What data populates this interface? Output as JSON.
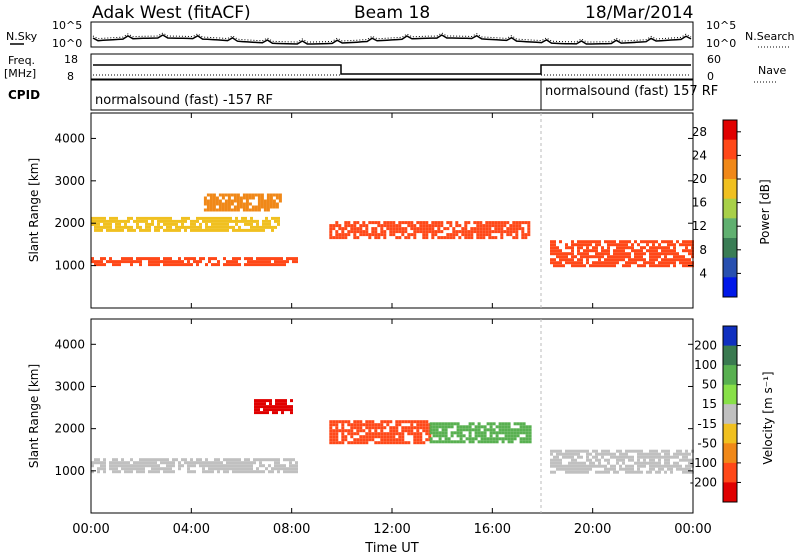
{
  "header": {
    "station": "Adak West (fitACF)",
    "beam": "Beam 18",
    "date": "18/Mar/2014"
  },
  "top_panels": {
    "nsky_label": "N.Sky",
    "nsearch_label": "N.Search",
    "noise_ticks": [
      "10^5",
      "10^0"
    ],
    "freq_label_1": "Freq.",
    "freq_label_2": "[MHz]",
    "freq_ticks": [
      "18",
      "8"
    ],
    "nave_label": "Nave",
    "nave_ticks": [
      "60",
      "0"
    ],
    "cpid_label": "CPID",
    "cpid_left": "normalsound (fast) -157 RF",
    "cpid_right": "normalsound (fast) 157 RF"
  },
  "chart_data": [
    {
      "type": "heatmap",
      "title": "Power",
      "xlabel": "Time UT",
      "ylabel": "Slant Range [km]",
      "x_ticks": [
        "00:00",
        "04:00",
        "08:00",
        "12:00",
        "16:00",
        "20:00",
        "00:00"
      ],
      "y_ticks": [
        1000,
        2000,
        3000,
        4000
      ],
      "ylim": [
        0,
        4600
      ],
      "xlim_hours": [
        0,
        24
      ],
      "colorbar": {
        "label": "Power [dB]",
        "ticks": [
          "4",
          "8",
          "12",
          "16",
          "20",
          "24",
          "28"
        ],
        "range": [
          0,
          30
        ],
        "colors": [
          "#0018e8",
          "#2850b0",
          "#3a7d55",
          "#60b070",
          "#a8d048",
          "#f0c020",
          "#f08818",
          "#ff4818",
          "#e00000"
        ]
      },
      "features": [
        {
          "desc": "near-range band",
          "start_h": 0,
          "end_h": 8.2,
          "range_km": [
            1000,
            1200
          ],
          "power_db": 26
        },
        {
          "desc": "mid band",
          "start_h": 0,
          "end_h": 7.5,
          "range_km": [
            1850,
            2150
          ],
          "power_db": 20
        },
        {
          "desc": "upper patch",
          "start_h": 4.5,
          "end_h": 7.5,
          "range_km": [
            2300,
            2700
          ],
          "power_db": 24
        },
        {
          "desc": "central F-region band",
          "start_h": 9.5,
          "end_h": 17.5,
          "range_km": [
            1650,
            2050
          ],
          "power_db": 26
        },
        {
          "desc": "evening band",
          "start_h": 18.3,
          "end_h": 24,
          "range_km": [
            1000,
            1600
          ],
          "power_db": 26
        }
      ]
    },
    {
      "type": "heatmap",
      "title": "Velocity",
      "xlabel": "Time UT",
      "ylabel": "Slant Range [km]",
      "x_ticks": [
        "00:00",
        "04:00",
        "08:00",
        "12:00",
        "16:00",
        "20:00",
        "00:00"
      ],
      "y_ticks": [
        1000,
        2000,
        3000,
        4000
      ],
      "ylim": [
        0,
        4600
      ],
      "xlim_hours": [
        0,
        24
      ],
      "colorbar": {
        "label": "Velocity [m s⁻¹]",
        "ticks": [
          "200",
          "100",
          "50",
          "15",
          "-15",
          "-50",
          "-100",
          "-200"
        ],
        "colors": [
          "#1030c0",
          "#3a7a50",
          "#58b050",
          "#88e048",
          "#c0c0c0",
          "#f0c020",
          "#f08818",
          "#ff4818",
          "#e00000"
        ]
      },
      "features": [
        {
          "desc": "ground scatter",
          "start_h": 0,
          "end_h": 8.2,
          "range_km": [
            1000,
            1300
          ],
          "velocity_ms": 0
        },
        {
          "desc": "negative patch",
          "start_h": 6.5,
          "end_h": 8.0,
          "range_km": [
            2400,
            2700
          ],
          "velocity_ms": -200
        },
        {
          "desc": "central negative",
          "start_h": 9.5,
          "end_h": 13.5,
          "range_km": [
            1650,
            2200
          ],
          "velocity_ms": -100
        },
        {
          "desc": "central positive",
          "start_h": 13.5,
          "end_h": 17.5,
          "range_km": [
            1700,
            2150
          ],
          "velocity_ms": 30
        },
        {
          "desc": "evening ground scatter",
          "start_h": 18.3,
          "end_h": 24,
          "range_km": [
            1000,
            1500
          ],
          "velocity_ms": 0
        }
      ]
    }
  ]
}
